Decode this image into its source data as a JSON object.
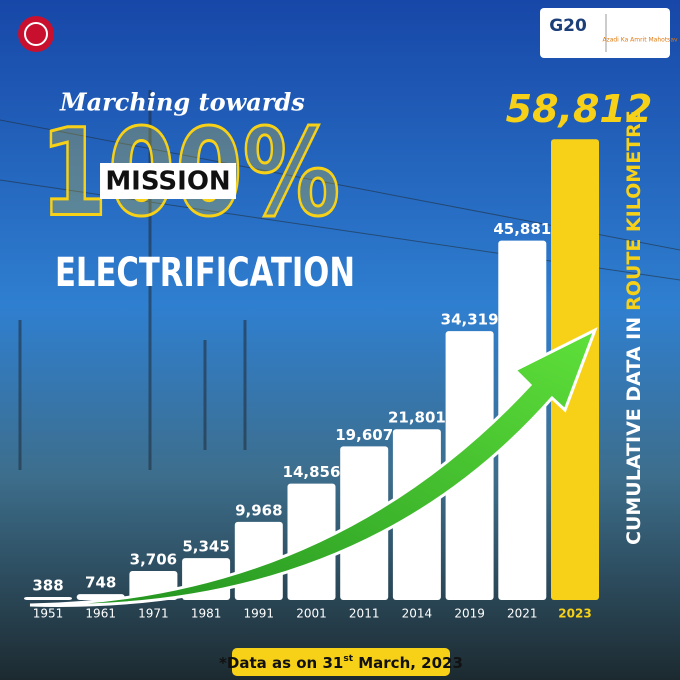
{
  "chart_data": {
    "type": "bar",
    "title_script": "Marching towards",
    "title_big": "100%",
    "title_badge": "MISSION",
    "title_main": "ELECTRIFICATION",
    "axis_label_white": "CUMULATIVE DATA IN",
    "axis_label_yellow": "ROUTE KILOMETRE",
    "logo_g20": "G20",
    "logo_amrit": "Azadi Ka Amrit Mahotsav",
    "footnote": {
      "prefix": "*Data as on 31",
      "superscript": "st",
      "suffix": " March, 2023"
    },
    "categories": [
      "1951",
      "1961",
      "1971",
      "1981",
      "1991",
      "2001",
      "2011",
      "2014",
      "2019",
      "2021",
      "2023"
    ],
    "values": [
      388,
      748,
      3706,
      5345,
      9968,
      14856,
      19607,
      21801,
      34319,
      45881,
      58812
    ],
    "value_labels": [
      "388",
      "748",
      "3,706",
      "5,345",
      "9,968",
      "14,856",
      "19,607",
      "21,801",
      "34,319",
      "45,881",
      "58,812"
    ],
    "colors": [
      "#ffffff",
      "#ffffff",
      "#ffffff",
      "#ffffff",
      "#ffffff",
      "#ffffff",
      "#ffffff",
      "#ffffff",
      "#ffffff",
      "#ffffff",
      "#f7d117"
    ],
    "ylim": [
      0,
      60000
    ]
  }
}
